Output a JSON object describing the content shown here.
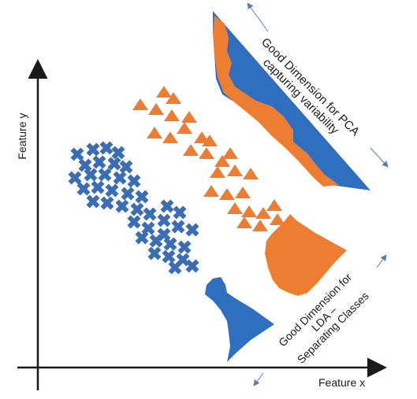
{
  "axes": {
    "x_label": "Feature x",
    "y_label": "Feature y"
  },
  "annotations": {
    "pca": {
      "line1": "Good Dimension for PCA",
      "line2": "capturing variability"
    },
    "lda": {
      "line1": "Good Dimension for",
      "line2": "LDA –",
      "line3": "Separating Classes"
    }
  },
  "colors": {
    "blue": "#2f6fbf",
    "cross_blue": "#3b6db5",
    "orange": "#ed7d31",
    "axis": "#1a1a1a",
    "arrow": "#5b7fa6"
  },
  "class_markers": {
    "cross_class": "cross-marker",
    "triangle_class": "triangle-marker"
  }
}
